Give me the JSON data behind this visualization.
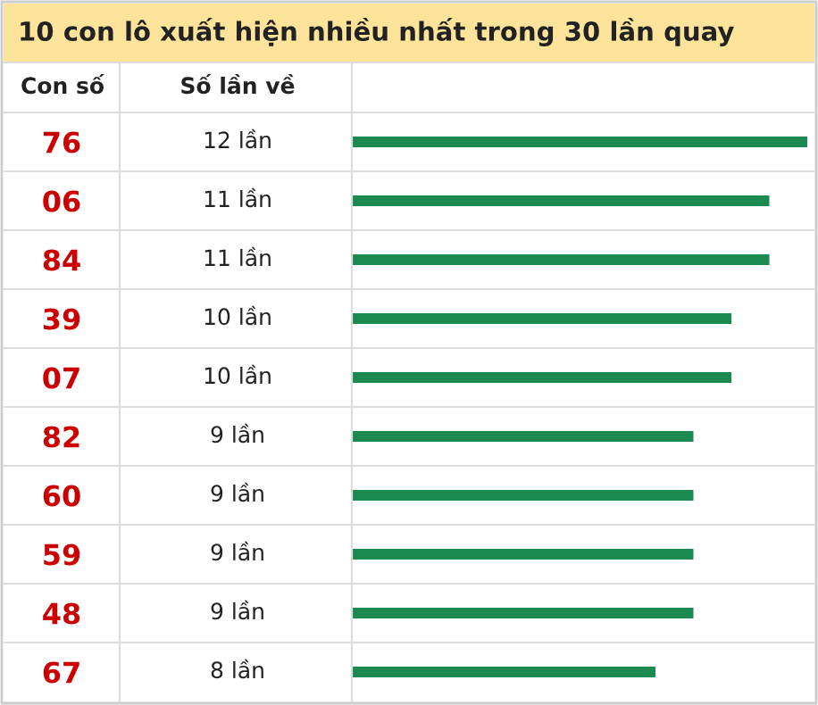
{
  "chart_data": {
    "type": "bar",
    "orientation": "horizontal",
    "title": "10 con lô xuất hiện nhiều nhất trong 30 lần quay",
    "annotations": [
      "Con số",
      "Số lần về"
    ],
    "categories": [
      "76",
      "06",
      "84",
      "39",
      "07",
      "82",
      "60",
      "59",
      "48",
      "67"
    ],
    "values": [
      12,
      11,
      11,
      10,
      10,
      9,
      9,
      9,
      9,
      8
    ],
    "value_labels": [
      "12 lần",
      "11 lần",
      "11 lần",
      "10 lần",
      "10 lần",
      "9 lần",
      "9 lần",
      "9 lần",
      "9 lần",
      "8 lần"
    ],
    "color": "#1b8a50",
    "tick_labels": "y"
  }
}
